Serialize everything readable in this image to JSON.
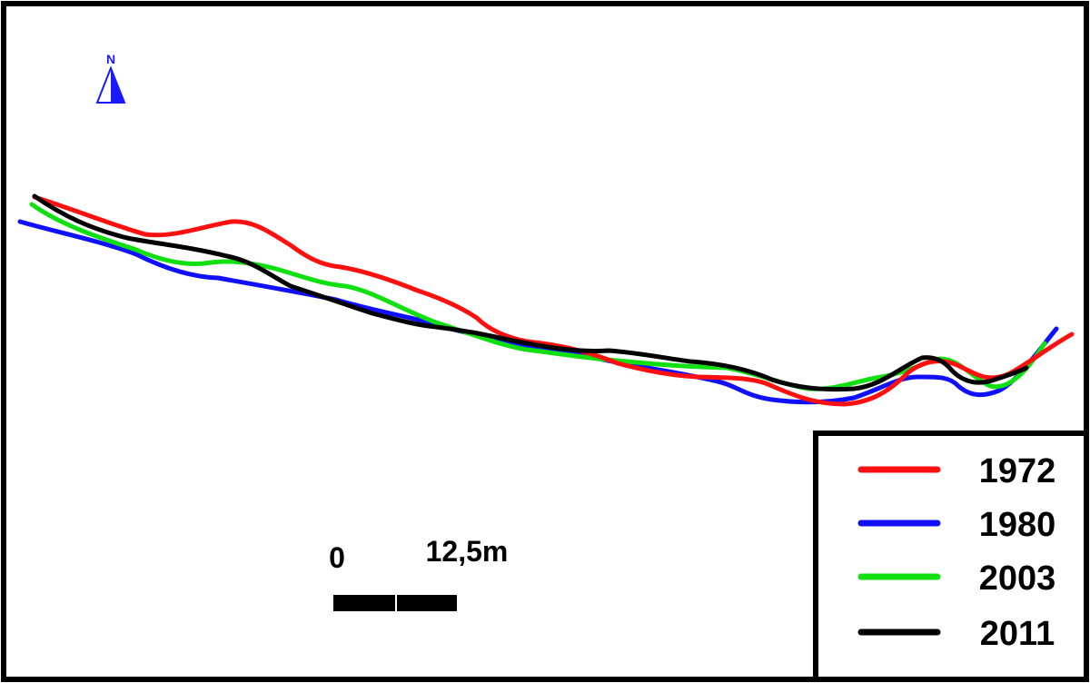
{
  "north_arrow": {
    "label": "N",
    "color": "#1a1aff",
    "icon": "north-arrow-icon"
  },
  "scale_bar": {
    "start_label": "0",
    "end_label": "12,5m",
    "distance_m": 12.5,
    "segments": 2,
    "color": "#000000"
  },
  "legend": {
    "position": "bottom-right",
    "entries": [
      {
        "label": "1972",
        "color": "#ff1010"
      },
      {
        "label": "1980",
        "color": "#1010ff"
      },
      {
        "label": "2003",
        "color": "#10e010"
      },
      {
        "label": "2011",
        "color": "#000000"
      }
    ]
  }
}
